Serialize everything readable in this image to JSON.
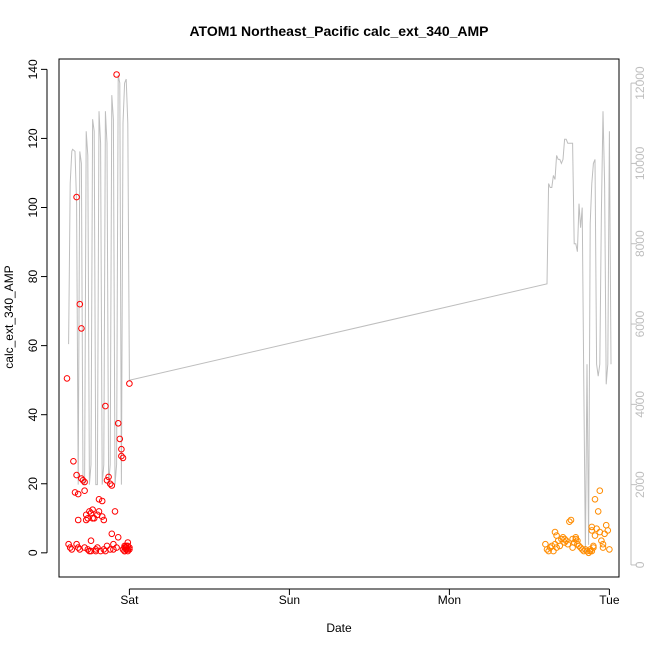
{
  "chart_data": {
    "type": "scatter",
    "title": "ATOM1 Northeast_Pacific calc_ext_340_AMP",
    "xlabel": "Date",
    "ylabel": "calc_ext_340_AMP",
    "x_ticks": [
      "Sat",
      "Sun",
      "Mon",
      "Tue"
    ],
    "y_ticks": [
      "0",
      "20",
      "40",
      "60",
      "80",
      "100",
      "120",
      "140"
    ],
    "y2_ticks": [
      "0",
      "2000",
      "4000",
      "6000",
      "8000",
      "10000",
      "12000"
    ],
    "xlim_days": [
      -0.44,
      3.06
    ],
    "ylim": [
      -7,
      143
    ],
    "y2lim": [
      -300,
      12600
    ],
    "grid": false,
    "colors": {
      "red_points": "#ff0000",
      "orange_points": "#ff8c00",
      "line": "#bebebe",
      "axis": "#000000",
      "axis2": "#bebebe"
    },
    "series": [
      {
        "kind": "points",
        "color": "#ff0000",
        "x_days": [
          -0.39,
          -0.38,
          -0.37,
          -0.36,
          -0.35,
          -0.34,
          -0.33,
          -0.33,
          -0.33,
          -0.32,
          -0.32,
          -0.32,
          -0.31,
          -0.31,
          -0.3,
          -0.3,
          -0.29,
          -0.28,
          -0.28,
          -0.28,
          -0.27,
          -0.27,
          -0.26,
          -0.26,
          -0.25,
          -0.25,
          -0.24,
          -0.24,
          -0.24,
          -0.23,
          -0.23,
          -0.22,
          -0.21,
          -0.21,
          -0.2,
          -0.2,
          -0.19,
          -0.19,
          -0.18,
          -0.17,
          -0.17,
          -0.16,
          -0.16,
          -0.15,
          -0.15,
          -0.14,
          -0.14,
          -0.13,
          -0.12,
          -0.12,
          -0.11,
          -0.11,
          -0.1,
          -0.1,
          -0.09,
          -0.08,
          -0.08,
          -0.07,
          -0.07,
          -0.06,
          -0.05,
          -0.05,
          -0.04,
          -0.04,
          -0.03,
          -0.03,
          -0.03,
          -0.03,
          -0.02,
          -0.02,
          -0.02,
          -0.01,
          -0.01,
          -0.01,
          -0.01,
          0.0,
          0.0,
          0.0
        ],
        "y": [
          50.5,
          2.5,
          1.5,
          1.0,
          26.5,
          17.5,
          22.5,
          103.0,
          2.5,
          17.0,
          9.5,
          1.5,
          1.0,
          72.0,
          65.0,
          21.5,
          21.0,
          18.0,
          20.5,
          1.5,
          9.5,
          11.0,
          10.0,
          1.0,
          12.0,
          0.5,
          11.5,
          3.5,
          0.5,
          10.0,
          12.5,
          10.0,
          1.0,
          0.5,
          11.0,
          1.5,
          12.0,
          15.5,
          0.5,
          15.0,
          10.5,
          1.0,
          9.5,
          0.5,
          42.5,
          2.0,
          21.0,
          22.0,
          1.0,
          20.0,
          19.5,
          5.5,
          2.5,
          1.0,
          12.0,
          138.5,
          1.5,
          4.5,
          37.5,
          33.0,
          30.0,
          28.0,
          27.5,
          1.0,
          2.0,
          1.5,
          0.5,
          0.5,
          1.0,
          2.0,
          1.5,
          3.0,
          1.0,
          2.0,
          0.5,
          49.0,
          1.0,
          1.5
        ]
      },
      {
        "kind": "points",
        "color": "#ff8c00",
        "x_days": [
          2.6,
          2.61,
          2.62,
          2.63,
          2.64,
          2.65,
          2.66,
          2.66,
          2.67,
          2.67,
          2.68,
          2.69,
          2.7,
          2.71,
          2.72,
          2.72,
          2.73,
          2.74,
          2.75,
          2.76,
          2.77,
          2.77,
          2.78,
          2.79,
          2.79,
          2.8,
          2.8,
          2.81,
          2.82,
          2.83,
          2.84,
          2.85,
          2.86,
          2.87,
          2.88,
          2.88,
          2.89,
          2.89,
          2.89,
          2.9,
          2.9,
          2.91,
          2.91,
          2.92,
          2.93,
          2.94,
          2.94,
          2.95,
          2.96,
          2.96,
          2.97,
          2.98,
          2.99,
          3.0
        ],
        "y": [
          2.5,
          1.0,
          0.5,
          1.5,
          2.0,
          0.5,
          2.5,
          6.0,
          5.0,
          1.5,
          3.5,
          2.0,
          4.0,
          4.5,
          3.0,
          4.0,
          3.5,
          2.5,
          9.0,
          9.5,
          4.0,
          1.5,
          3.0,
          4.0,
          4.5,
          3.5,
          2.5,
          2.0,
          1.5,
          1.0,
          0.5,
          1.0,
          0.5,
          0.0,
          1.0,
          0.5,
          0.5,
          7.5,
          6.5,
          2.0,
          1.5,
          5.0,
          15.5,
          7.0,
          12.0,
          18.0,
          6.0,
          3.5,
          2.5,
          1.5,
          5.5,
          8.0,
          6.5,
          1.0
        ]
      },
      {
        "kind": "line",
        "axis": "right",
        "color": "#bebebe",
        "x_days": [
          -0.38,
          -0.37,
          -0.36,
          -0.355,
          -0.34,
          -0.33,
          -0.32,
          -0.31,
          -0.3,
          -0.29,
          -0.28,
          -0.27,
          -0.26,
          -0.25,
          -0.24,
          -0.23,
          -0.22,
          -0.21,
          -0.2,
          -0.19,
          -0.18,
          -0.17,
          -0.16,
          -0.15,
          -0.14,
          -0.13,
          -0.12,
          -0.11,
          -0.1,
          -0.09,
          -0.08,
          -0.07,
          -0.06,
          -0.05,
          -0.04,
          -0.03,
          -0.02,
          -0.01,
          0.0,
          2.61,
          2.62,
          2.63,
          2.64,
          2.65,
          2.66,
          2.67,
          2.68,
          2.69,
          2.7,
          2.71,
          2.72,
          2.73,
          2.74,
          2.75,
          2.76,
          2.77,
          2.78,
          2.79,
          2.8,
          2.81,
          2.82,
          2.83,
          2.84,
          2.85,
          2.86,
          2.87,
          2.88,
          2.89,
          2.9,
          2.91,
          2.92,
          2.93,
          2.94,
          2.95,
          2.96,
          2.97,
          2.98,
          2.99,
          3.0,
          3.01
        ],
        "y": [
          5500,
          9500,
          10300,
          10350,
          10300,
          9000,
          2000,
          10300,
          10000,
          2000,
          2000,
          10800,
          10200,
          2000,
          2500,
          11100,
          10800,
          2000,
          2000,
          11300,
          10500,
          2000,
          2500,
          11300,
          10500,
          2000,
          2500,
          11700,
          11100,
          2000,
          2500,
          12200,
          12000,
          2000,
          11000,
          12000,
          12100,
          11000,
          4600,
          7000,
          9500,
          9400,
          9400,
          9700,
          9600,
          10200,
          10100,
          10100,
          10000,
          10100,
          10600,
          10600,
          10500,
          10500,
          10500,
          10500,
          8000,
          8000,
          7800,
          9000,
          8400,
          8900,
          4500,
          300,
          5000,
          500,
          8500,
          9500,
          10000,
          10100,
          5000,
          4700,
          5000,
          8800,
          11300,
          9500,
          4500,
          5000,
          10800,
          5000
        ]
      }
    ]
  }
}
